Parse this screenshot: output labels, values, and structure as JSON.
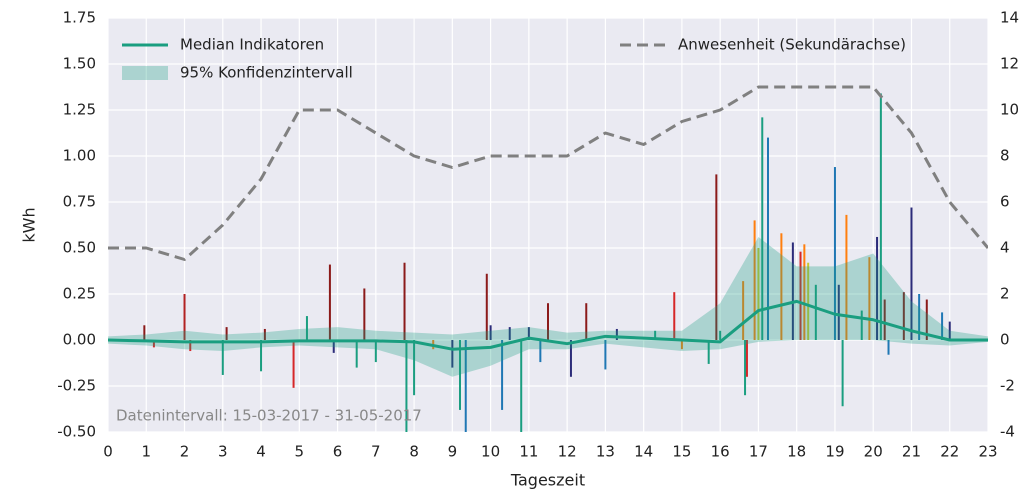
{
  "chart_data": {
    "type": "line",
    "xlabel": "Tageszeit",
    "ylabel": "kWh",
    "annotation": "Datenintervall: 15-03-2017 - 31-05-2017",
    "x": [
      0,
      1,
      2,
      3,
      4,
      5,
      6,
      7,
      8,
      9,
      10,
      11,
      12,
      13,
      14,
      15,
      16,
      17,
      18,
      19,
      20,
      21,
      22,
      23
    ],
    "xlim": [
      0,
      23
    ],
    "xticks": [
      0,
      1,
      2,
      3,
      4,
      5,
      6,
      7,
      8,
      9,
      10,
      11,
      12,
      13,
      14,
      15,
      16,
      17,
      18,
      19,
      20,
      21,
      22,
      23
    ],
    "ylim": [
      -0.5,
      1.75
    ],
    "yticks": [
      {
        "value": -0.5,
        "label": "-0.50"
      },
      {
        "value": -0.25,
        "label": "-0.25"
      },
      {
        "value": 0,
        "label": "0.00"
      },
      {
        "value": 0.25,
        "label": "0.25"
      },
      {
        "value": 0.5,
        "label": "0.50"
      },
      {
        "value": 0.75,
        "label": "0.75"
      },
      {
        "value": 1,
        "label": "1.00"
      },
      {
        "value": 1.25,
        "label": "1.25"
      },
      {
        "value": 1.5,
        "label": "1.50"
      },
      {
        "value": 1.75,
        "label": "1.75"
      }
    ],
    "y2lim": [
      -4,
      14
    ],
    "y2ticks": [
      -4,
      -2,
      0,
      2,
      4,
      6,
      8,
      10,
      12,
      14
    ],
    "grid": true,
    "legend": "upper left",
    "legend_y2": "upper right",
    "series": [
      {
        "name": "Median Indikatoren",
        "color": "#1a9e80",
        "values": [
          0.0,
          -0.005,
          -0.01,
          -0.01,
          -0.01,
          -0.005,
          -0.005,
          -0.005,
          -0.01,
          -0.05,
          -0.04,
          0.01,
          -0.02,
          0.02,
          0.01,
          0.0,
          -0.01,
          0.16,
          0.21,
          0.14,
          0.11,
          0.05,
          0.0,
          0.0
        ]
      },
      {
        "name": "95% Konfidenzintervall",
        "color": "#1a9e80",
        "upper": [
          0.02,
          0.03,
          0.05,
          0.03,
          0.04,
          0.06,
          0.07,
          0.05,
          0.04,
          0.03,
          0.05,
          0.07,
          0.04,
          0.05,
          0.05,
          0.05,
          0.2,
          0.56,
          0.4,
          0.4,
          0.47,
          0.21,
          0.05,
          0.02
        ],
        "lower": [
          -0.02,
          -0.03,
          -0.05,
          -0.06,
          -0.04,
          -0.03,
          -0.04,
          -0.05,
          -0.11,
          -0.2,
          -0.14,
          -0.05,
          -0.05,
          -0.02,
          -0.04,
          -0.06,
          -0.05,
          -0.01,
          0.0,
          0.0,
          0.0,
          -0.02,
          -0.03,
          -0.01
        ]
      },
      {
        "name": "Anwesenheit (Sekundärachse)",
        "color": "#808080",
        "axis": "y2",
        "dashed": true,
        "values": [
          4,
          4,
          3.5,
          5,
          7,
          10,
          10,
          9,
          8,
          7.5,
          8,
          8,
          8,
          9,
          8.5,
          9.5,
          10,
          11,
          11,
          11,
          11,
          9,
          6,
          4
        ]
      }
    ],
    "indicator_bars": {
      "x": [
        0.95,
        1.2,
        2.0,
        2.15,
        3.0,
        3.1,
        4.0,
        4.1,
        4.85,
        5.2,
        5.8,
        5.9,
        6.5,
        6.7,
        7.0,
        7.75,
        7.8,
        8.0,
        8.5,
        9.0,
        9.2,
        9.35,
        9.9,
        10.0,
        10.3,
        10.5,
        10.8,
        11.0,
        11.3,
        11.5,
        12.1,
        12.5,
        13.0,
        13.3,
        14.3,
        14.8,
        15.0,
        15.7,
        15.9,
        16.0,
        16.6,
        16.65,
        16.7,
        16.9,
        17.0,
        17.1,
        17.25,
        17.6,
        17.9,
        18.1,
        18.2,
        18.3,
        18.5,
        19.0,
        19.1,
        19.2,
        19.3,
        19.7,
        19.9,
        20.1,
        20.2,
        20.3,
        20.4,
        20.8,
        21.0,
        21.2,
        21.4,
        21.8,
        22.0
      ],
      "values": [
        0.08,
        -0.04,
        0.25,
        -0.06,
        -0.19,
        0.07,
        -0.17,
        0.06,
        -0.26,
        0.13,
        0.41,
        -0.07,
        -0.15,
        0.28,
        -0.12,
        0.42,
        -0.5,
        -0.3,
        -0.05,
        -0.15,
        -0.38,
        -0.5,
        0.36,
        0.08,
        -0.38,
        0.07,
        -0.5,
        0.07,
        -0.12,
        0.2,
        -0.2,
        0.2,
        -0.16,
        0.06,
        0.05,
        0.26,
        -0.05,
        -0.13,
        0.9,
        0.05,
        0.32,
        -0.3,
        -0.2,
        0.65,
        0.5,
        1.21,
        1.1,
        0.58,
        0.53,
        0.48,
        0.52,
        0.42,
        0.3,
        0.94,
        0.3,
        -0.36,
        0.68,
        0.16,
        0.45,
        0.56,
        1.34,
        0.22,
        -0.08,
        0.26,
        0.72,
        0.25,
        0.22,
        0.15,
        0.1
      ],
      "colors": [
        "#8b1a1a",
        "#d62728",
        "#b22222",
        "#d62728",
        "#1a9e80",
        "#8b1a1a",
        "#1a9e80",
        "#8b1a1a",
        "#d62728",
        "#1a9e80",
        "#8b1a1a",
        "#2c2c7a",
        "#1a9e80",
        "#8b1a1a",
        "#1a9e80",
        "#8b1a1a",
        "#1a9e80",
        "#1a9e80",
        "#ff7f0e",
        "#2c2c7a",
        "#1a9e80",
        "#1f77b4",
        "#8b1a1a",
        "#2c2c7a",
        "#1f77b4",
        "#2c2c7a",
        "#1a9e80",
        "#2c2c7a",
        "#1f77b4",
        "#8b1a1a",
        "#2c2c7a",
        "#8b1a1a",
        "#1f77b4",
        "#2c2c7a",
        "#1a9e80",
        "#d62728",
        "#ff7f0e",
        "#1a9e80",
        "#8b1a1a",
        "#1a9e80",
        "#ff7f0e",
        "#1a9e80",
        "#d62728",
        "#ff7f0e",
        "#c8c832",
        "#1a9e80",
        "#1f77b4",
        "#ff7f0e",
        "#2c2c7a",
        "#d62728",
        "#ff7f0e",
        "#c8c832",
        "#1a9e80",
        "#1f77b4",
        "#2c2c7a",
        "#1a9e80",
        "#ff7f0e",
        "#1a9e80",
        "#ff7f0e",
        "#2c2c7a",
        "#1a9e80",
        "#8b1a1a",
        "#1f77b4",
        "#8b1a1a",
        "#2c2c7a",
        "#1f77b4",
        "#8b1a1a",
        "#1f77b4",
        "#2c2c7a"
      ]
    }
  }
}
